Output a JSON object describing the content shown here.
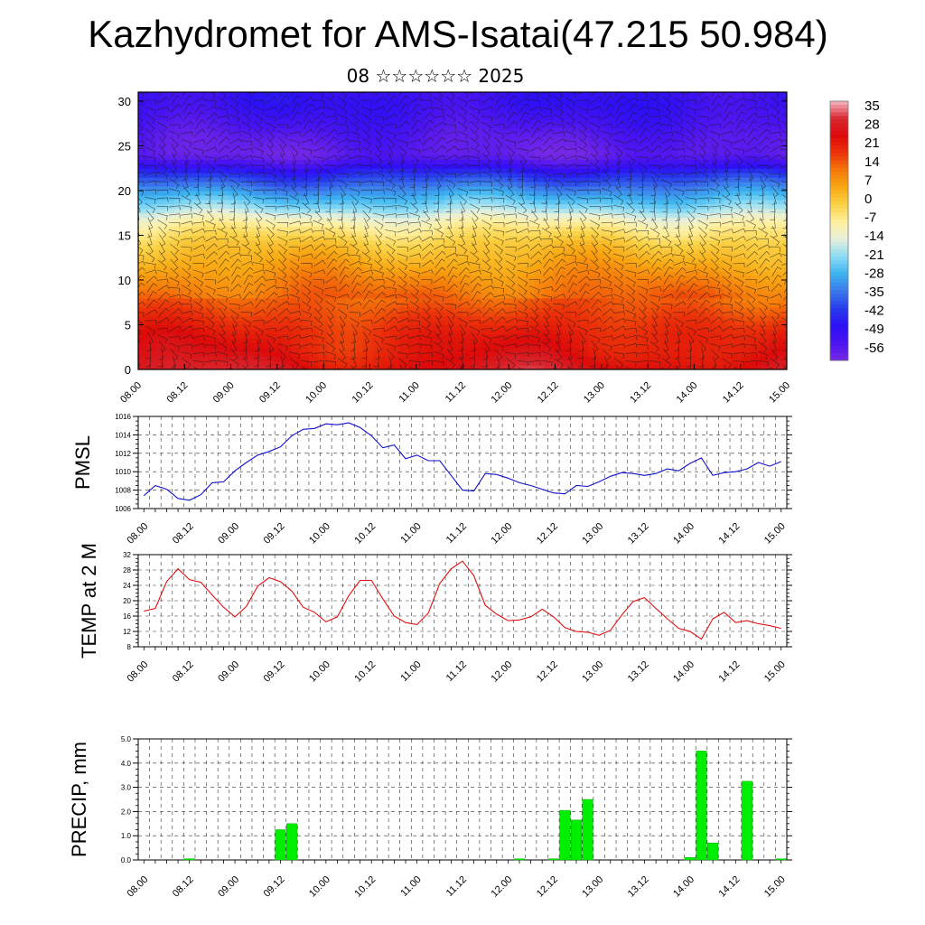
{
  "title": "Kazhydromet for AMS-Isatai(47.215 50.984)",
  "subtitle": "08 ☆☆☆☆☆☆ 2025",
  "chart_data": [
    {
      "type": "heatmap",
      "name": "upper-air-temperature-section",
      "x_ticks": [
        "08.00",
        "08.12",
        "09.00",
        "09.12",
        "10.00",
        "10.12",
        "11.00",
        "11.12",
        "12.00",
        "12.12",
        "13.00",
        "13.12",
        "14.00",
        "14.12",
        "15.00"
      ],
      "y_ticks": [
        "0",
        "5",
        "10",
        "15",
        "20",
        "25",
        "30"
      ],
      "ylim": [
        0,
        31
      ],
      "colorbar": {
        "labels": [
          "35",
          "28",
          "21",
          "14",
          "7",
          "0",
          "-7",
          "-14",
          "-21",
          "-28",
          "-35",
          "-42",
          "-49",
          "-56"
        ],
        "range": [
          -63,
          42
        ]
      },
      "temperature_profile": {
        "levels": [
          0,
          2,
          4,
          6,
          8,
          10,
          12,
          14,
          15,
          16,
          17,
          18,
          20,
          22,
          23,
          24,
          26,
          28,
          30,
          31
        ],
        "values": [
          30,
          26,
          24,
          20,
          16,
          12,
          7,
          2,
          -2,
          -6,
          -12,
          -20,
          -32,
          -45,
          -54,
          -60,
          -58,
          -54,
          -51,
          -52
        ]
      },
      "wind_barbs": true
    },
    {
      "type": "line",
      "name": "pmsl",
      "ylabel": "PMSL",
      "ylim": [
        1006,
        1016
      ],
      "yticks": [
        "1006",
        "1008",
        "1010",
        "1012",
        "1014",
        "1016"
      ],
      "x_ticks": [
        "08.00",
        "08.12",
        "09.00",
        "09.12",
        "10.00",
        "10.12",
        "11.00",
        "11.12",
        "12.00",
        "12.12",
        "13.00",
        "13.12",
        "14.00",
        "14.12",
        "15.00"
      ],
      "x_step_hours": 3,
      "values": [
        1007.4,
        1008.5,
        1008.1,
        1007.1,
        1006.9,
        1007.5,
        1008.8,
        1008.9,
        1010.1,
        1011.0,
        1011.8,
        1012.2,
        1012.7,
        1013.9,
        1014.6,
        1014.7,
        1015.2,
        1015.1,
        1015.3,
        1014.8,
        1013.9,
        1012.6,
        1012.9,
        1011.4,
        1011.8,
        1011.2,
        1011.2,
        1009.6,
        1008.0,
        1007.9,
        1009.8,
        1009.7,
        1009.3,
        1008.8,
        1008.5,
        1008.1,
        1007.7,
        1007.6,
        1008.5,
        1008.4,
        1008.9,
        1009.5,
        1009.9,
        1009.8,
        1009.6,
        1009.8,
        1010.3,
        1010.1,
        1010.9,
        1011.5,
        1009.6,
        1009.9,
        1010.0,
        1010.3,
        1011.0,
        1010.6,
        1011.1
      ]
    },
    {
      "type": "line",
      "name": "temp-2m",
      "ylabel": "TEMP at 2 M",
      "ylim": [
        8,
        32
      ],
      "yticks": [
        "8",
        "12",
        "16",
        "20",
        "24",
        "28",
        "32"
      ],
      "x_ticks": [
        "08.00",
        "08.12",
        "09.00",
        "09.12",
        "10.00",
        "10.12",
        "11.00",
        "11.12",
        "12.00",
        "12.12",
        "13.00",
        "13.12",
        "14.00",
        "14.12",
        "15.00"
      ],
      "x_step_hours": 3,
      "values": [
        17.3,
        18.0,
        25.0,
        28.3,
        25.5,
        24.8,
        21.5,
        18.3,
        15.8,
        18.5,
        23.8,
        26.0,
        25.0,
        22.5,
        18.3,
        17.0,
        14.5,
        15.8,
        21.3,
        25.3,
        25.3,
        20.5,
        16.0,
        14.3,
        13.8,
        16.8,
        24.5,
        28.3,
        30.3,
        26.5,
        18.8,
        16.5,
        14.8,
        15.0,
        15.8,
        17.8,
        15.8,
        13.0,
        12.0,
        11.8,
        11.0,
        12.3,
        16.3,
        19.8,
        20.8,
        18.0,
        15.3,
        12.8,
        12.0,
        10.0,
        15.3,
        17.0,
        14.3,
        14.8,
        14.0,
        13.5,
        12.8
      ]
    },
    {
      "type": "bar",
      "name": "precip",
      "ylabel": "PRECIP, mm",
      "ylim": [
        0,
        5
      ],
      "yticks": [
        "0.0",
        "1.0",
        "2.0",
        "3.0",
        "4.0",
        "5.0"
      ],
      "x_ticks": [
        "08.00",
        "08.12",
        "09.00",
        "09.12",
        "10.00",
        "10.12",
        "11.00",
        "11.12",
        "12.00",
        "12.12",
        "13.00",
        "13.12",
        "14.00",
        "14.12",
        "15.00"
      ],
      "x_step_hours": 3,
      "color": "#00ee00",
      "values": [
        0,
        0,
        0,
        0,
        0.05,
        0,
        0,
        0,
        0,
        0,
        0,
        0,
        1.25,
        1.5,
        0,
        0,
        0,
        0,
        0,
        0,
        0,
        0,
        0,
        0,
        0,
        0,
        0,
        0,
        0,
        0,
        0,
        0,
        0,
        0.05,
        0,
        0,
        0.05,
        2.05,
        1.65,
        2.5,
        0,
        0,
        0,
        0,
        0,
        0,
        0,
        0,
        0.1,
        4.5,
        0.7,
        0,
        0,
        3.25,
        0,
        0,
        0.05
      ]
    }
  ]
}
